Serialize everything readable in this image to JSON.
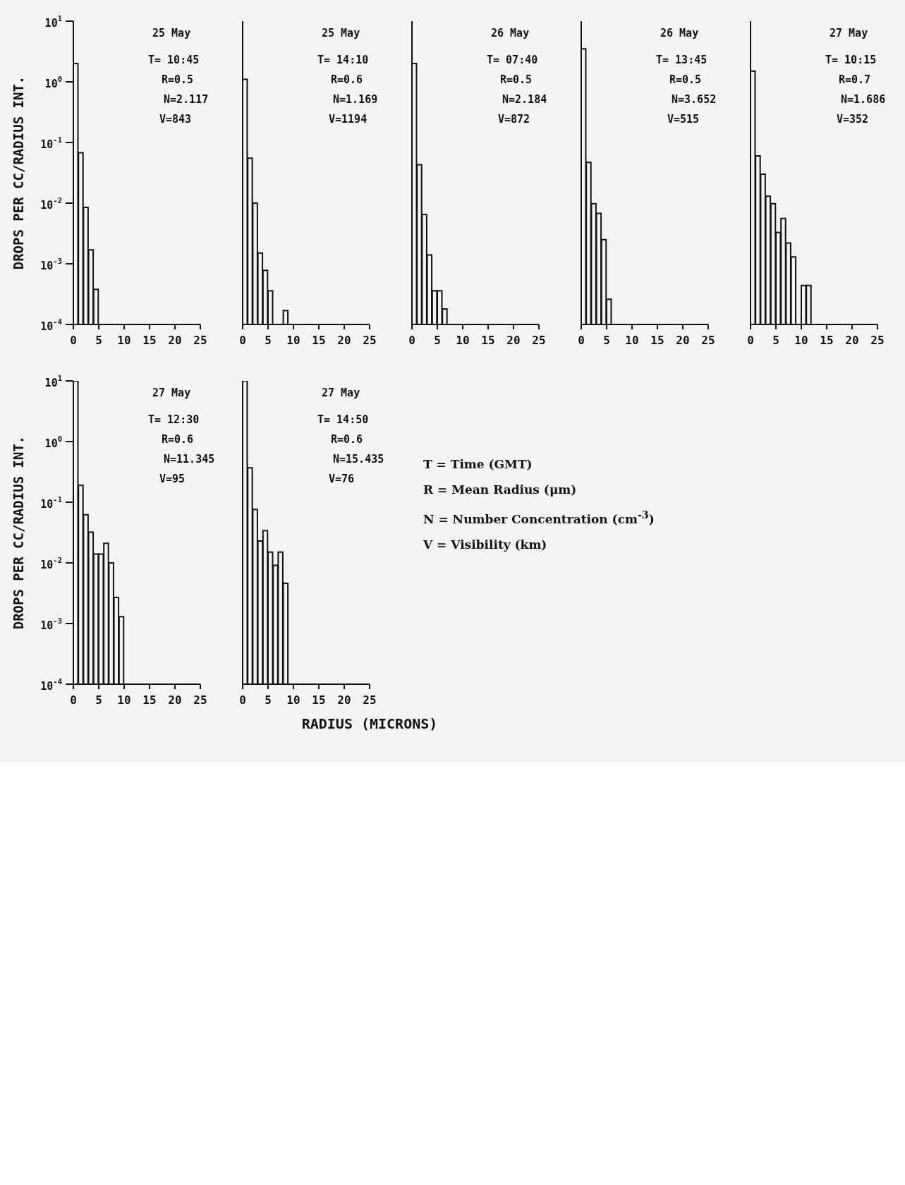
{
  "chart_data": [
    {
      "type": "histogram",
      "title": "25 May",
      "annotations": [
        "T= 10:45",
        "R=0.5",
        "N=2.117",
        "V=843"
      ],
      "ylabel": "DROPS PER CC/RADIUS INT.",
      "color": "#111111",
      "log": true,
      "bins": [
        0,
        1,
        2,
        3,
        4,
        5
      ],
      "values": [
        2.0,
        0.068,
        0.0085,
        0.0017,
        0.00038
      ],
      "xlim": [
        0,
        25
      ],
      "xticks": [
        0,
        5,
        10,
        15,
        20,
        25
      ],
      "ylim": [
        0.0001,
        10
      ],
      "yticks": [
        {
          "value": 10,
          "label": "10$^{1}$"
        },
        {
          "value": 1,
          "label": "10$^{0}$"
        },
        {
          "value": 0.1,
          "label": "10$^{-1}$"
        },
        {
          "value": 0.01,
          "label": "10$^{-2}$"
        },
        {
          "value": 0.001,
          "label": "10$^{-3}$"
        },
        {
          "value": 0.0001,
          "label": "10$^{-4}$"
        }
      ]
    },
    {
      "type": "histogram",
      "title": "25 May",
      "annotations": [
        "T= 14:10",
        "R=0.6",
        "N=1.169",
        "V=1194"
      ],
      "color": "#111111",
      "log": true,
      "tick_labels": "x",
      "bins": [
        0,
        1,
        2,
        3,
        4,
        5,
        6,
        7,
        8,
        9
      ],
      "values": [
        1.1,
        0.055,
        0.01,
        0.0015,
        0.00078,
        0.00036,
        null,
        null,
        0.00017
      ],
      "xlim": [
        0,
        25
      ],
      "xticks": [
        0,
        5,
        10,
        15,
        20,
        25
      ],
      "ylim": [
        0.0001,
        10
      ],
      "yticks": [
        {
          "value": 10,
          "label": null
        },
        {
          "value": 1,
          "label": null
        },
        {
          "value": 0.1,
          "label": null
        },
        {
          "value": 0.01,
          "label": null
        },
        {
          "value": 0.001,
          "label": null
        },
        {
          "value": 0.0001,
          "label": null
        }
      ]
    },
    {
      "type": "histogram",
      "title": "26 May",
      "annotations": [
        "T= 07:40",
        "R=0.5",
        "N=2.184",
        "V=872"
      ],
      "color": "#111111",
      "log": true,
      "tick_labels": "x",
      "bins": [
        0,
        1,
        2,
        3,
        4,
        5,
        6,
        7
      ],
      "values": [
        2.0,
        0.043,
        0.0065,
        0.0014,
        0.00036,
        0.00036,
        0.00018
      ],
      "xlim": [
        0,
        25
      ],
      "xticks": [
        0,
        5,
        10,
        15,
        20,
        25
      ],
      "ylim": [
        0.0001,
        10
      ],
      "yticks": [
        {
          "value": 10,
          "label": null
        },
        {
          "value": 1,
          "label": null
        },
        {
          "value": 0.1,
          "label": null
        },
        {
          "value": 0.01,
          "label": null
        },
        {
          "value": 0.001,
          "label": null
        },
        {
          "value": 0.0001,
          "label": null
        }
      ]
    },
    {
      "type": "histogram",
      "title": "26 May",
      "annotations": [
        "T= 13:45",
        "R=0.5",
        "N=3.652",
        "V=515"
      ],
      "color": "#111111",
      "log": true,
      "tick_labels": "x",
      "bins": [
        0,
        1,
        2,
        3,
        4,
        5,
        6
      ],
      "values": [
        3.5,
        0.047,
        0.0098,
        0.0068,
        0.0025,
        0.00026
      ],
      "xlim": [
        0,
        25
      ],
      "xticks": [
        0,
        5,
        10,
        15,
        20,
        25
      ],
      "ylim": [
        0.0001,
        10
      ],
      "yticks": [
        {
          "value": 10,
          "label": null
        },
        {
          "value": 1,
          "label": null
        },
        {
          "value": 0.1,
          "label": null
        },
        {
          "value": 0.01,
          "label": null
        },
        {
          "value": 0.001,
          "label": null
        },
        {
          "value": 0.0001,
          "label": null
        }
      ]
    },
    {
      "type": "histogram",
      "title": "27 May",
      "annotations": [
        "T= 10:15",
        "R=0.7",
        "N=1.686",
        "V=352"
      ],
      "color": "#111111",
      "log": true,
      "tick_labels": "x",
      "bins": [
        0,
        1,
        2,
        3,
        4,
        5,
        6,
        7,
        8,
        9,
        10,
        11,
        12
      ],
      "values": [
        1.5,
        0.06,
        0.03,
        0.013,
        0.0098,
        0.0033,
        0.0056,
        0.0022,
        0.0013,
        null,
        0.00044,
        0.00044
      ],
      "xlim": [
        0,
        25
      ],
      "xticks": [
        0,
        5,
        10,
        15,
        20,
        25
      ],
      "ylim": [
        0.0001,
        10
      ],
      "yticks": [
        {
          "value": 10,
          "label": null
        },
        {
          "value": 1,
          "label": null
        },
        {
          "value": 0.1,
          "label": null
        },
        {
          "value": 0.01,
          "label": null
        },
        {
          "value": 0.001,
          "label": null
        },
        {
          "value": 0.0001,
          "label": null
        }
      ]
    },
    {
      "type": "histogram",
      "title": "27 May",
      "annotations": [
        "T= 12:30",
        "R=0.6",
        "N=11.345",
        "V=95"
      ],
      "ylabel": "DROPS PER CC/RADIUS INT.",
      "color": "#111111",
      "log": true,
      "bins": [
        0,
        1,
        2,
        3,
        4,
        5,
        6,
        7,
        8,
        9,
        10
      ],
      "values": [
        10,
        0.19,
        0.062,
        0.032,
        0.014,
        0.014,
        0.021,
        0.01,
        0.0027,
        0.0013
      ],
      "xlim": [
        0,
        25
      ],
      "xticks": [
        0,
        5,
        10,
        15,
        20,
        25
      ],
      "ylim": [
        0.0001,
        10
      ],
      "yticks": [
        {
          "value": 10,
          "label": "10$^{1}$"
        },
        {
          "value": 1,
          "label": "10$^{0}$"
        },
        {
          "value": 0.1,
          "label": "10$^{-1}$"
        },
        {
          "value": 0.01,
          "label": "10$^{-2}$"
        },
        {
          "value": 0.001,
          "label": "10$^{-3}$"
        },
        {
          "value": 0.0001,
          "label": "10$^{-4}$"
        }
      ]
    },
    {
      "type": "histogram",
      "title": "27 May",
      "annotations": [
        "T= 14:50",
        "R=0.6",
        "N=15.435",
        "V=76"
      ],
      "xlabel": "RADIUS (MICRONS)",
      "color": "#111111",
      "log": true,
      "tick_labels": "x",
      "bins": [
        0,
        1,
        2,
        3,
        4,
        5,
        6,
        7,
        8,
        9
      ],
      "values": [
        10,
        0.37,
        0.076,
        0.023,
        0.034,
        0.015,
        0.0091,
        0.015,
        0.0046
      ],
      "xlim": [
        0,
        25
      ],
      "xticks": [
        0,
        5,
        10,
        15,
        20,
        25
      ],
      "ylim": [
        0.0001,
        10
      ],
      "yticks": [
        {
          "value": 10,
          "label": null
        },
        {
          "value": 1,
          "label": null
        },
        {
          "value": 0.1,
          "label": null
        },
        {
          "value": 0.01,
          "label": null
        },
        {
          "value": 0.001,
          "label": null
        },
        {
          "value": 0.0001,
          "label": null
        }
      ]
    },
    {
      "type": "other",
      "annotations": [
        "T = Time (GMT)",
        "R = Mean Radius (μm)",
        "N = Number Concentration (cm$^{-3}$)",
        "V = Visibility (km)"
      ]
    }
  ]
}
